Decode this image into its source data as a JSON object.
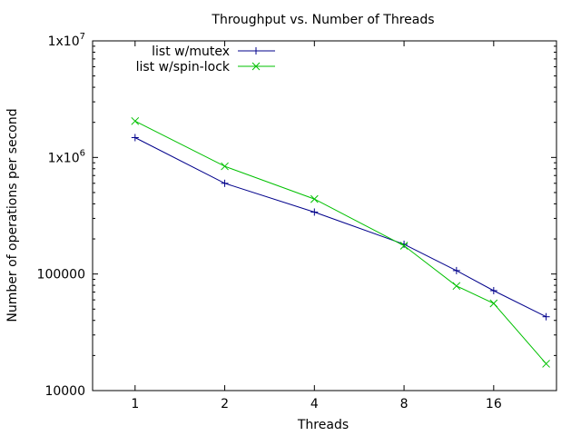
{
  "chart_data": {
    "type": "line",
    "title": "Throughput vs. Number of Threads",
    "xlabel": "Threads",
    "ylabel": "Number of operations per second",
    "x_scale": "log2",
    "y_scale": "log10",
    "xlim": [
      0.72,
      26
    ],
    "ylim": [
      10000,
      10000000
    ],
    "x_ticks": [
      {
        "value": 1,
        "label": "1"
      },
      {
        "value": 2,
        "label": "2"
      },
      {
        "value": 4,
        "label": "4"
      },
      {
        "value": 8,
        "label": "8"
      },
      {
        "value": 16,
        "label": "16"
      }
    ],
    "y_ticks": [
      {
        "value": 10000,
        "label": "10000"
      },
      {
        "value": 100000,
        "label": "100000"
      },
      {
        "value": 1000000,
        "label": "1x10",
        "sup": "6"
      },
      {
        "value": 10000000,
        "label": "1x10",
        "sup": "7"
      }
    ],
    "x": [
      1,
      2,
      4,
      8,
      12,
      16,
      24
    ],
    "series": [
      {
        "name": "list w/mutex",
        "color": "#00008b",
        "marker": "plus",
        "values": [
          1480000,
          600000,
          340000,
          180000,
          107000,
          72000,
          43000
        ]
      },
      {
        "name": "list w/spin-lock",
        "color": "#00c000",
        "marker": "cross",
        "values": [
          2050000,
          840000,
          440000,
          175000,
          79000,
          56000,
          17000
        ]
      }
    ],
    "legend_position": "top-left",
    "grid": false
  }
}
